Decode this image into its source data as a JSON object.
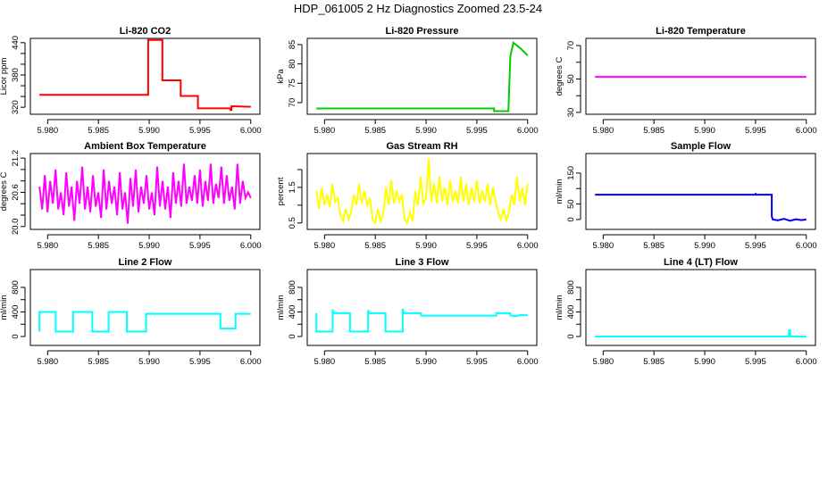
{
  "title": "HDP_061005  2 Hz Diagnostics Zoomed 23.5-24",
  "chart_data": [
    {
      "type": "line",
      "title": "Li-820 CO2",
      "ylabel": "Licor ppm",
      "color": "#ff0000",
      "xlim": [
        5.9783,
        6.0009
      ],
      "ylim": [
        307,
        448
      ],
      "yticks": [
        320,
        340,
        360,
        380,
        400,
        420,
        440
      ],
      "ytick_labels": [
        "320",
        "",
        "",
        "380",
        "",
        "",
        "440"
      ],
      "x": [
        5.9792,
        5.9899,
        5.9899,
        5.9913,
        5.9913,
        5.9931,
        5.9931,
        5.9948,
        5.9948,
        5.998,
        5.998,
        5.9981,
        5.9981,
        6.0
      ],
      "y": [
        343,
        343,
        445,
        445,
        370,
        370,
        341,
        341,
        318,
        318,
        315,
        315,
        322,
        321
      ]
    },
    {
      "type": "line",
      "title": "Li-820 Pressure",
      "ylabel": "kPa",
      "color": "#00cc00",
      "xlim": [
        5.9783,
        6.0009
      ],
      "ylim": [
        67,
        86.6
      ],
      "yticks": [
        70,
        75,
        80,
        85
      ],
      "ytick_labels": [
        "70",
        "75",
        "80",
        "85"
      ],
      "x": [
        5.9792,
        5.9967,
        5.9967,
        5.9981,
        5.9983,
        5.9986,
        5.9993,
        6.0
      ],
      "y": [
        68.5,
        68.5,
        67.8,
        67.8,
        82,
        85.5,
        84,
        82.2
      ]
    },
    {
      "type": "line",
      "title": "Li-820 Temperature",
      "ylabel": "degrees C",
      "color": "#ff00ff",
      "xlim": [
        5.9783,
        6.0009
      ],
      "ylim": [
        28.9,
        74.3
      ],
      "yticks": [
        30,
        40,
        50,
        60,
        70
      ],
      "ytick_labels": [
        "30",
        "",
        "50",
        "",
        "70"
      ],
      "x": [
        5.9792,
        6.0
      ],
      "y": [
        51.3,
        51.3
      ]
    },
    {
      "type": "line",
      "title": "Ambient Box Temperature",
      "ylabel": "degrees C",
      "color": "#ff00ff",
      "xlim": [
        5.9783,
        6.0009
      ],
      "ylim": [
        19.95,
        21.28
      ],
      "yticks": [
        20.0,
        20.2,
        20.4,
        20.6,
        20.8,
        21.0,
        21.2
      ],
      "ytick_labels": [
        "20.0",
        "",
        "",
        "20.6",
        "",
        "",
        "21.2"
      ],
      "x_range": [
        5.9792,
        6.0
      ],
      "y": [
        20.7,
        20.3,
        20.9,
        20.25,
        20.8,
        20.4,
        21.0,
        20.3,
        20.6,
        20.2,
        20.95,
        20.35,
        20.7,
        20.1,
        20.8,
        20.4,
        21.05,
        20.3,
        20.7,
        20.25,
        20.9,
        20.35,
        20.6,
        20.15,
        21.0,
        20.3,
        20.8,
        20.4,
        20.7,
        20.2,
        20.95,
        20.3,
        20.6,
        20.05,
        20.85,
        20.35,
        21.0,
        20.25,
        20.7,
        20.4,
        20.9,
        20.3,
        20.6,
        20.2,
        21.05,
        20.35,
        20.8,
        20.3,
        20.7,
        20.15,
        20.95,
        20.4,
        20.8,
        20.35,
        21.1,
        20.4,
        20.7,
        20.45,
        20.9,
        20.4,
        21.0,
        20.35,
        20.8,
        20.45,
        21.1,
        20.4,
        20.75,
        20.5,
        21.05,
        20.4,
        20.9,
        20.45,
        20.7,
        20.3,
        21.1,
        20.4,
        20.8,
        20.5,
        20.6,
        20.5
      ]
    },
    {
      "type": "line",
      "title": "Gas Stream RH",
      "ylabel": "percent",
      "color": "#ffff00",
      "xlim": [
        5.9783,
        6.0009
      ],
      "ylim": [
        0.32,
        2.45
      ],
      "yticks": [
        0.5,
        1.0,
        1.5,
        2.0
      ],
      "ytick_labels": [
        "0.5",
        "",
        "1.5",
        ""
      ],
      "x_range": [
        5.9792,
        6.0
      ],
      "y": [
        1.4,
        0.9,
        1.5,
        1.0,
        1.3,
        0.95,
        1.6,
        1.1,
        1.2,
        0.7,
        0.55,
        0.9,
        0.6,
        0.8,
        1.3,
        1.0,
        1.6,
        1.05,
        1.4,
        1.0,
        1.2,
        0.6,
        0.5,
        0.9,
        0.55,
        0.75,
        1.5,
        1.0,
        1.7,
        1.05,
        1.4,
        1.1,
        1.3,
        0.6,
        0.5,
        0.8,
        0.55,
        1.4,
        1.0,
        1.8,
        1.05,
        1.2,
        2.3,
        1.1,
        1.6,
        1.05,
        1.8,
        1.1,
        1.5,
        1.0,
        1.7,
        1.1,
        1.4,
        1.05,
        1.8,
        1.1,
        1.6,
        1.0,
        1.5,
        1.1,
        1.7,
        1.05,
        1.4,
        1.1,
        1.6,
        1.0,
        1.5,
        1.1,
        0.8,
        0.6,
        0.9,
        0.55,
        0.8,
        1.3,
        1.0,
        1.8,
        1.1,
        1.5,
        1.0,
        1.6
      ]
    },
    {
      "type": "line",
      "title": "Sample Flow",
      "ylabel": "ml/min",
      "color": "#0000ff",
      "xlim": [
        5.9783,
        6.0009
      ],
      "ylim": [
        -32,
        213
      ],
      "yticks": [
        0,
        50,
        100,
        150
      ],
      "ytick_labels": [
        "0",
        "50",
        "",
        "150"
      ],
      "x": [
        5.9792,
        5.995,
        5.995,
        5.99505,
        5.9966,
        5.9966,
        5.9967,
        5.9972,
        5.9978,
        5.9984,
        5.999,
        5.9995,
        6.0
      ],
      "y": [
        80,
        80,
        85,
        80,
        80,
        10,
        0,
        -3,
        2,
        -4,
        1,
        -2,
        0
      ]
    },
    {
      "type": "line",
      "title": "Line 2 Flow",
      "ylabel": "ml/min",
      "color": "#00ffff",
      "xlim": [
        5.9783,
        6.0009
      ],
      "ylim": [
        -145,
        1090
      ],
      "yticks": [
        0,
        200,
        400,
        600,
        800
      ],
      "ytick_labels": [
        "0",
        "",
        "400",
        "",
        "800"
      ],
      "x": [
        5.9792,
        5.9792,
        5.9808,
        5.9808,
        5.9825,
        5.9825,
        5.9844,
        5.9844,
        5.986,
        5.986,
        5.9878,
        5.9878,
        5.9897,
        5.9897,
        5.997,
        5.997,
        5.9985,
        5.9985,
        6.0
      ],
      "y": [
        80,
        400,
        400,
        80,
        80,
        400,
        400,
        80,
        80,
        400,
        400,
        80,
        80,
        370,
        370,
        130,
        130,
        370,
        370
      ]
    },
    {
      "type": "line",
      "title": "Line 3 Flow",
      "ylabel": "ml/min",
      "color": "#00ffff",
      "xlim": [
        5.9783,
        6.0009
      ],
      "ylim": [
        -145,
        1090
      ],
      "yticks": [
        0,
        200,
        400,
        600,
        800
      ],
      "ytick_labels": [
        "0",
        "",
        "400",
        "",
        "800"
      ],
      "x": [
        5.9792,
        5.9792,
        5.9808,
        5.9808,
        5.9809,
        5.9825,
        5.9825,
        5.9843,
        5.9843,
        5.9844,
        5.986,
        5.986,
        5.9877,
        5.9877,
        5.9878,
        5.9895,
        5.9895,
        5.9969,
        5.9969,
        5.9983,
        5.9983,
        5.9988,
        5.9993,
        6.0
      ],
      "y": [
        380,
        80,
        80,
        440,
        380,
        380,
        80,
        80,
        430,
        380,
        380,
        80,
        80,
        450,
        380,
        380,
        340,
        340,
        380,
        380,
        345,
        330,
        350,
        345
      ]
    },
    {
      "type": "line",
      "title": "Line 4 (LT) Flow",
      "ylabel": "ml/min",
      "color": "#00ffff",
      "xlim": [
        5.9783,
        6.0009
      ],
      "ylim": [
        -145,
        1090
      ],
      "yticks": [
        0,
        200,
        400,
        600,
        800
      ],
      "ytick_labels": [
        "0",
        "",
        "400",
        "",
        "800"
      ],
      "x": [
        5.9792,
        5.9983,
        5.9983,
        5.9984,
        5.9984,
        5.99845,
        5.9985,
        6.0
      ],
      "y": [
        0,
        0,
        100,
        100,
        20,
        20,
        0,
        0
      ]
    }
  ],
  "x_axis": {
    "ticks": [
      5.98,
      5.985,
      5.99,
      5.995,
      6.0
    ],
    "tick_labels": [
      "5.980",
      "5.985",
      "5.990",
      "5.995",
      "6.000"
    ]
  }
}
